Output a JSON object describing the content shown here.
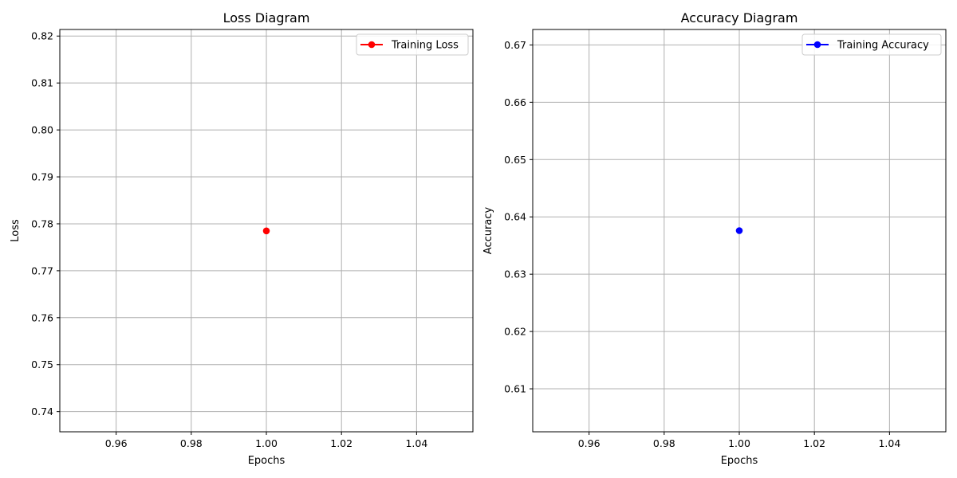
{
  "chart_data": [
    {
      "type": "line",
      "title": "Loss Diagram",
      "xlabel": "Epochs",
      "ylabel": "Loss",
      "xlim": [
        0.945,
        1.055
      ],
      "ylim": [
        0.7357,
        0.8214
      ],
      "xticks": [
        "0.96",
        "0.98",
        "1.00",
        "1.02",
        "1.04"
      ],
      "xtick_values": [
        0.96,
        0.98,
        1.0,
        1.02,
        1.04
      ],
      "yticks": [
        "0.74",
        "0.75",
        "0.76",
        "0.77",
        "0.78",
        "0.79",
        "0.80",
        "0.81",
        "0.82"
      ],
      "ytick_values": [
        0.74,
        0.75,
        0.76,
        0.77,
        0.78,
        0.79,
        0.8,
        0.81,
        0.82
      ],
      "grid": true,
      "legend_position": "top-right",
      "series": [
        {
          "name": "Training Loss",
          "color": "#ff0000",
          "marker": "circle",
          "x": [
            1.0
          ],
          "y": [
            0.7785
          ]
        }
      ]
    },
    {
      "type": "line",
      "title": "Accuracy Diagram",
      "xlabel": "Epochs",
      "ylabel": "Accuracy",
      "xlim": [
        0.945,
        1.055
      ],
      "ylim": [
        0.6025,
        0.6727
      ],
      "xticks": [
        "0.96",
        "0.98",
        "1.00",
        "1.02",
        "1.04"
      ],
      "xtick_values": [
        0.96,
        0.98,
        1.0,
        1.02,
        1.04
      ],
      "yticks": [
        "0.61",
        "0.62",
        "0.63",
        "0.64",
        "0.65",
        "0.66",
        "0.67"
      ],
      "ytick_values": [
        0.61,
        0.62,
        0.63,
        0.64,
        0.65,
        0.66,
        0.67
      ],
      "grid": true,
      "legend_position": "top-right",
      "series": [
        {
          "name": "Training Accuracy",
          "color": "#0000ff",
          "marker": "circle",
          "x": [
            1.0
          ],
          "y": [
            0.6376
          ]
        }
      ]
    }
  ]
}
